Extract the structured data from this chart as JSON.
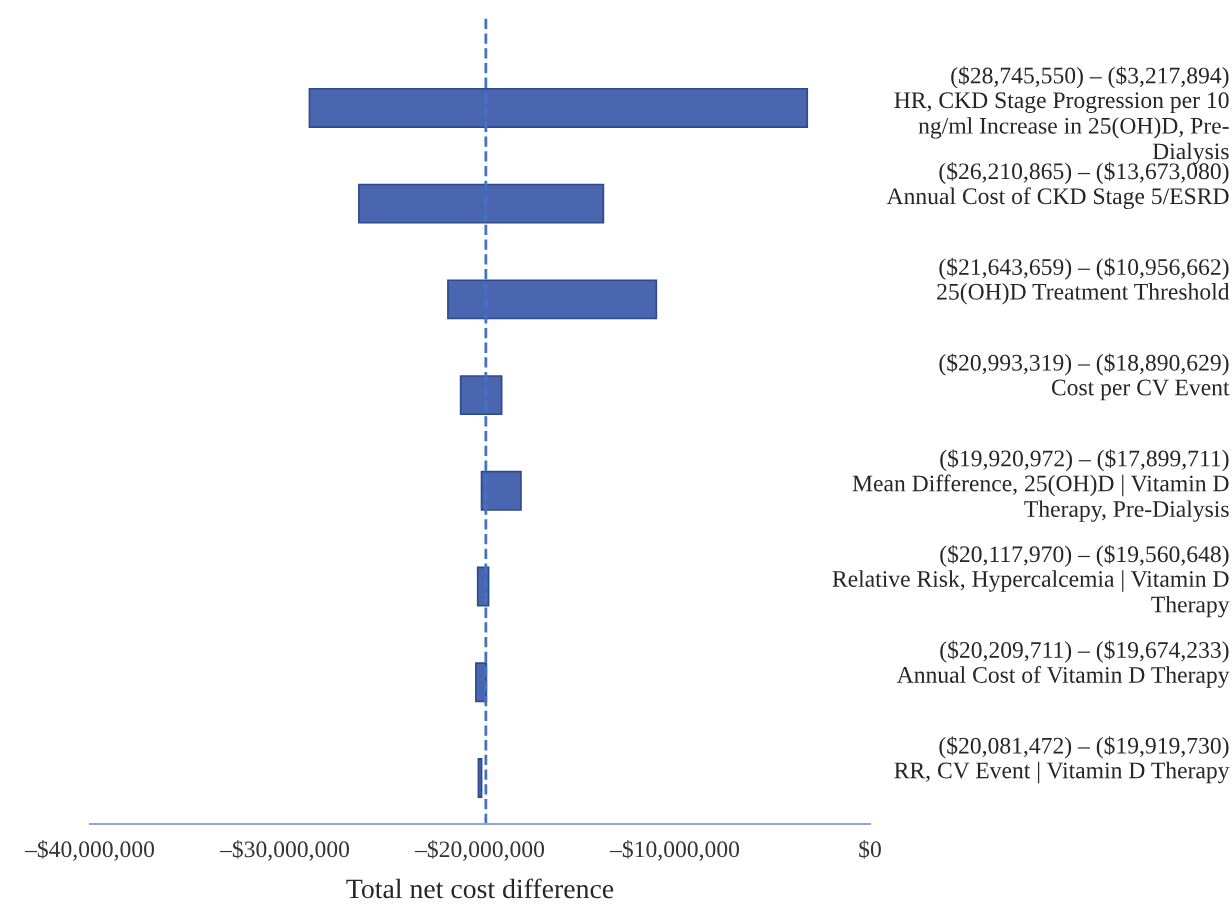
{
  "chart_data": {
    "type": "bar",
    "orientation": "horizontal",
    "xlabel": "Total net cost difference",
    "categories": [
      "HR, CKD Stage Progression per 10\nng/ml Increase in 25(OH)D, Pre-\nDialysis",
      "Annual Cost of CKD Stage 5/ESRD",
      "25(OH)D Treatment Threshold",
      "Cost per CV Event",
      "Mean Difference, 25(OH)D | Vitamin D\nTherapy, Pre-Dialysis",
      "Relative Risk, Hypercalcemia | Vitamin D\nTherapy",
      "Annual Cost of Vitamin D Therapy",
      "RR, CV Event | Vitamin D Therapy"
    ],
    "base": [
      -28745550,
      -26210865,
      -21643659,
      -20993319,
      -19920972,
      -20117970,
      -20209711,
      -20081472
    ],
    "values": [
      25527656,
      12537785,
      10686997,
      2102690,
      2021261,
      557322,
      535478,
      161742
    ],
    "value_labels": [
      "($28,745,550) – ($3,217,894)",
      "($26,210,865) – ($13,673,080)",
      "($21,643,659) – ($10,956,662)",
      "($20,993,319) – ($18,890,629)",
      "($19,920,972) – ($17,899,711)",
      "($20,117,970) – ($19,560,648)",
      "($20,209,711) – ($19,674,233)",
      "($20,081,472) – ($19,919,730)"
    ],
    "color": "#4a66b0",
    "xlim": [
      -40000000,
      0
    ],
    "xticks": [
      {
        "value": -40000000,
        "label": "–$40,000,000"
      },
      {
        "value": -30000000,
        "label": "–$30,000,000"
      },
      {
        "value": -20000000,
        "label": "–$20,000,000"
      },
      {
        "value": -10000000,
        "label": "–$10,000,000"
      },
      {
        "value": 0,
        "label": "$0"
      }
    ],
    "ref_lines": [
      {
        "axis": "x",
        "value": -19700000,
        "color": "#4472c4",
        "line_style": "dashed"
      }
    ],
    "grid": false,
    "legend": false
  }
}
